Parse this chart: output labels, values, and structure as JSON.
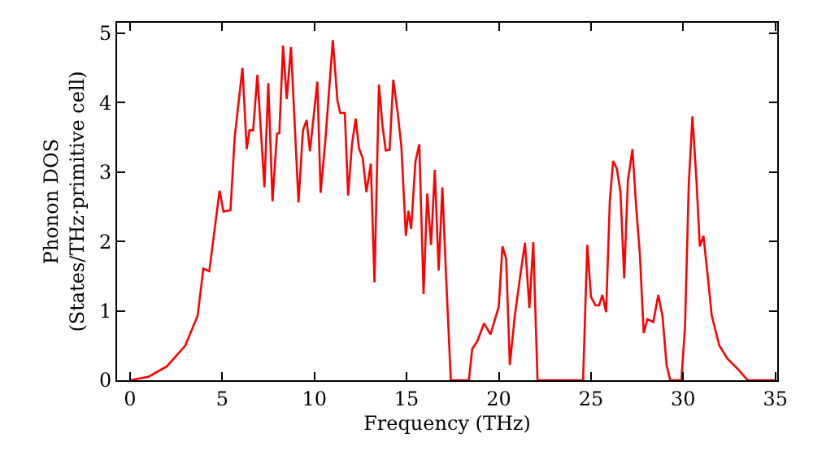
{
  "chart_data": {
    "type": "line",
    "xlabel": "Frequency (THz)",
    "ylabel": "Phonon DOS\n(States/THz·primitive cell)",
    "xlim": [
      -0.7,
      35.1
    ],
    "ylim": [
      0,
      5.15
    ],
    "xticks": [
      0,
      5,
      10,
      15,
      20,
      25,
      30,
      35
    ],
    "yticks": [
      0,
      1,
      2,
      3,
      4,
      5
    ],
    "legend": false,
    "marker": "none",
    "line_style": "solid",
    "x": [
      0,
      1,
      2,
      3,
      3.67,
      3.98,
      4.3,
      4.86,
      5.07,
      5.45,
      5.68,
      6.1,
      6.33,
      6.48,
      6.68,
      6.91,
      7.29,
      7.5,
      7.73,
      7.97,
      8.1,
      8.3,
      8.5,
      8.73,
      9.14,
      9.38,
      9.58,
      9.76,
      10.16,
      10.34,
      10.6,
      11.0,
      11.25,
      11.4,
      11.65,
      11.83,
      12.04,
      12.24,
      12.42,
      12.62,
      12.82,
      13.06,
      13.26,
      13.5,
      13.7,
      13.87,
      14.08,
      14.28,
      14.52,
      14.72,
      14.96,
      15.1,
      15.25,
      15.48,
      15.69,
      15.92,
      16.12,
      16.33,
      16.53,
      16.74,
      16.94,
      17.15,
      17.4,
      18.38,
      18.56,
      18.85,
      19.2,
      19.55,
      20.0,
      20.2,
      20.4,
      20.6,
      20.87,
      21.16,
      21.42,
      21.66,
      21.87,
      22.1,
      24.57,
      24.8,
      25.0,
      25.24,
      25.44,
      25.62,
      25.82,
      26.02,
      26.2,
      26.4,
      26.6,
      26.8,
      27.0,
      27.25,
      27.45,
      27.65,
      27.86,
      28.06,
      28.38,
      28.65,
      28.88,
      29.1,
      29.3,
      29.9,
      30.1,
      30.3,
      30.5,
      30.72,
      30.9,
      31.1,
      31.3,
      31.55,
      31.96,
      32.4,
      33.0,
      33.5,
      35.0
    ],
    "series": [
      {
        "color": "#ff0000",
        "values": [
          0,
          0.05,
          0.2,
          0.5,
          0.93,
          1.61,
          1.57,
          2.73,
          2.43,
          2.45,
          3.5,
          4.5,
          3.33,
          3.6,
          3.6,
          4.4,
          2.78,
          4.28,
          2.58,
          3.55,
          3.56,
          4.82,
          4.05,
          4.8,
          2.56,
          3.6,
          3.75,
          3.3,
          4.3,
          2.7,
          3.47,
          4.9,
          4.03,
          3.85,
          3.85,
          2.66,
          3.4,
          3.77,
          3.34,
          3.2,
          2.71,
          3.12,
          1.41,
          4.26,
          3.65,
          3.31,
          3.32,
          4.33,
          3.85,
          3.36,
          2.08,
          2.44,
          2.18,
          3.15,
          3.4,
          1.24,
          2.69,
          1.95,
          3.03,
          1.58,
          2.78,
          1.45,
          0,
          0,
          0.45,
          0.57,
          0.82,
          0.66,
          1.06,
          1.93,
          1.75,
          0.22,
          0.93,
          1.5,
          1.98,
          1.04,
          1.99,
          0,
          0,
          1.95,
          1.2,
          1.08,
          1.08,
          1.23,
          0.98,
          2.58,
          3.16,
          3.05,
          2.71,
          1.47,
          2.87,
          3.33,
          2.5,
          1.82,
          0.68,
          0.88,
          0.84,
          1.23,
          0.92,
          0.22,
          0,
          0,
          0.77,
          2.8,
          3.8,
          2.88,
          1.93,
          2.08,
          1.58,
          0.93,
          0.5,
          0.31,
          0.15,
          0,
          0
        ]
      }
    ]
  }
}
